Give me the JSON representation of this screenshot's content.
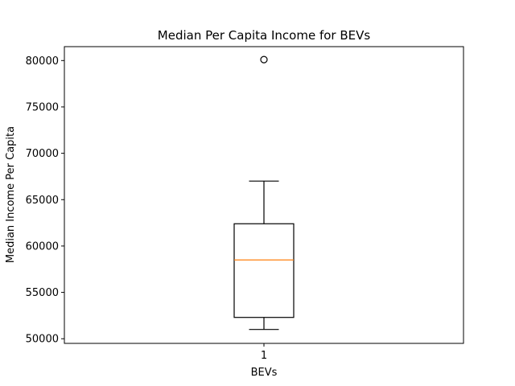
{
  "chart_data": {
    "type": "box",
    "title": "Median Per Capita Income for BEVs",
    "xlabel": "BEVs",
    "ylabel": "Median Income Per Capita",
    "categories": [
      "1"
    ],
    "ylim": [
      49500,
      81500
    ],
    "yticks": [
      50000,
      55000,
      60000,
      65000,
      70000,
      75000,
      80000
    ],
    "ytick_labels": [
      "50000",
      "55000",
      "60000",
      "65000",
      "70000",
      "75000",
      "80000"
    ],
    "box": {
      "whisker_low": 51000,
      "q1": 52300,
      "median": 58500,
      "q3": 62400,
      "whisker_high": 67000,
      "outliers": [
        80100
      ]
    },
    "colors": {
      "box": "#000000",
      "median": "#ff7f0e",
      "axes": "#000000",
      "background": "#ffffff"
    },
    "grid": false,
    "legend": "none"
  }
}
